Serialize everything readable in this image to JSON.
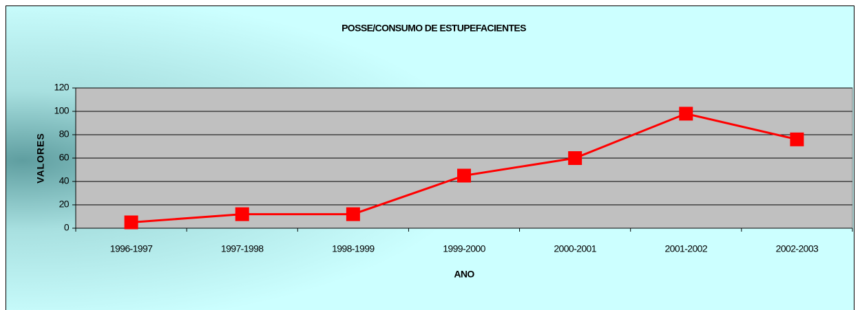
{
  "chart_data": {
    "type": "line",
    "title": "POSSE/CONSUMO DE ESTUPEFACIENTES",
    "x_label": "ANO",
    "y_label": "VALORES",
    "categories": [
      "1996-1997",
      "1997-1998",
      "1998-1999",
      "1999-2000",
      "2000-2001",
      "2001-2002",
      "2002-2003"
    ],
    "series": [
      {
        "name": "POSSE/CONSUMO DE ESTUPEFACIENTES",
        "color": "#ff0000",
        "values": [
          5,
          12,
          12,
          45,
          60,
          98,
          76
        ]
      }
    ],
    "ylim": [
      0,
      120
    ],
    "yticks": [
      0,
      20,
      40,
      60,
      80,
      100,
      120
    ],
    "grid": true
  }
}
